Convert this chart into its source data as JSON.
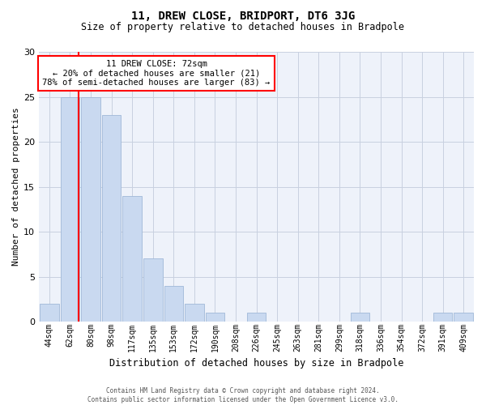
{
  "title": "11, DREW CLOSE, BRIDPORT, DT6 3JG",
  "subtitle": "Size of property relative to detached houses in Bradpole",
  "xlabel": "Distribution of detached houses by size in Bradpole",
  "ylabel": "Number of detached properties",
  "bar_labels": [
    "44sqm",
    "62sqm",
    "80sqm",
    "98sqm",
    "117sqm",
    "135sqm",
    "153sqm",
    "172sqm",
    "190sqm",
    "208sqm",
    "226sqm",
    "245sqm",
    "263sqm",
    "281sqm",
    "299sqm",
    "318sqm",
    "336sqm",
    "354sqm",
    "372sqm",
    "391sqm",
    "409sqm"
  ],
  "bar_values": [
    2,
    25,
    25,
    23,
    14,
    7,
    4,
    2,
    1,
    0,
    1,
    0,
    0,
    0,
    0,
    1,
    0,
    0,
    0,
    1,
    1
  ],
  "bar_color": "#c9d9f0",
  "bar_edgecolor": "#a0b8d8",
  "annotation_text": "11 DREW CLOSE: 72sqm\n← 20% of detached houses are smaller (21)\n78% of semi-detached houses are larger (83) →",
  "annotation_box_color": "white",
  "annotation_box_edgecolor": "red",
  "vline_color": "red",
  "vline_x": 1.42,
  "ylim": [
    0,
    30
  ],
  "yticks": [
    0,
    5,
    10,
    15,
    20,
    25,
    30
  ],
  "footer_line1": "Contains HM Land Registry data © Crown copyright and database right 2024.",
  "footer_line2": "Contains public sector information licensed under the Open Government Licence v3.0.",
  "background_color": "#eef2fa",
  "grid_color": "#c8d0e0",
  "title_fontsize": 10,
  "subtitle_fontsize": 8.5,
  "ylabel_fontsize": 8,
  "xlabel_fontsize": 8.5,
  "tick_fontsize": 7,
  "footer_fontsize": 5.5,
  "annot_fontsize": 7.5
}
